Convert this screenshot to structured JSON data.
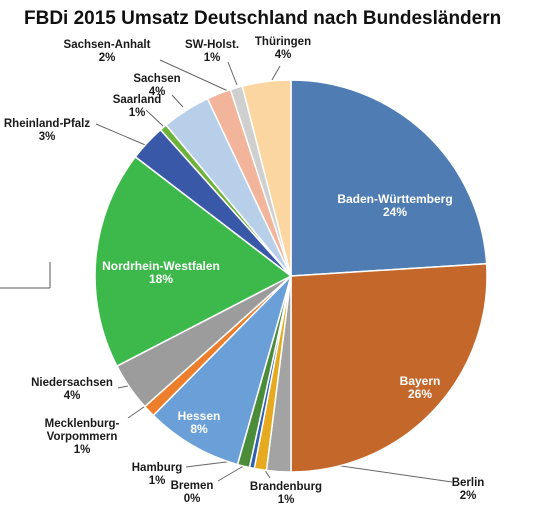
{
  "chart_data": {
    "type": "pie",
    "title": "FBDi 2015 Umsatz Deutschland nach Bundesländern",
    "start": "12 o'clock",
    "direction": "clockwise",
    "slices": [
      {
        "label": "Baden-Württemberg",
        "value_label": "24%",
        "value": 24,
        "color": "#4f7db3"
      },
      {
        "label": "Bayern",
        "value_label": "26%",
        "value": 26,
        "color": "#c4672b"
      },
      {
        "label": "Berlin",
        "value_label": "2%",
        "value": 2,
        "color": "#a3a3a3"
      },
      {
        "label": "Brandenburg",
        "value_label": "1%",
        "value": 1,
        "color": "#e6aa20"
      },
      {
        "label": "Bremen",
        "value_label": "0%",
        "value": 0.4,
        "color": "#3060b0"
      },
      {
        "label": "Hamburg",
        "value_label": "1%",
        "value": 1,
        "color": "#4a8c3a"
      },
      {
        "label": "Hessen",
        "value_label": "8%",
        "value": 8,
        "color": "#6a9fd8"
      },
      {
        "label": "Mecklenburg-Vorpommern",
        "value_label": "1%",
        "value": 1,
        "color": "#ec7e2c"
      },
      {
        "label": "Niedersachsen",
        "value_label": "4%",
        "value": 4,
        "color": "#9c9c9c"
      },
      {
        "label": "Nordrhein-Westfalen",
        "value_label": "18%",
        "value": 18,
        "color": "#3cb94a"
      },
      {
        "label": "Rheinland-Pfalz",
        "value_label": "3%",
        "value": 3,
        "color": "#3a58a8"
      },
      {
        "label": "Saarland",
        "value_label": "1%",
        "value": 0.6,
        "color": "#6db23a"
      },
      {
        "label": "Sachsen",
        "value_label": "4%",
        "value": 4,
        "color": "#b8cfea"
      },
      {
        "label": "Sachsen-Anhalt",
        "value_label": "2%",
        "value": 2,
        "color": "#f3b49c"
      },
      {
        "label": "SW-Holst.",
        "value_label": "1%",
        "value": 1,
        "color": "#cfcfcf"
      },
      {
        "label": "Thüringen",
        "value_label": "4%",
        "value": 4,
        "color": "#fbd6a0"
      }
    ]
  }
}
